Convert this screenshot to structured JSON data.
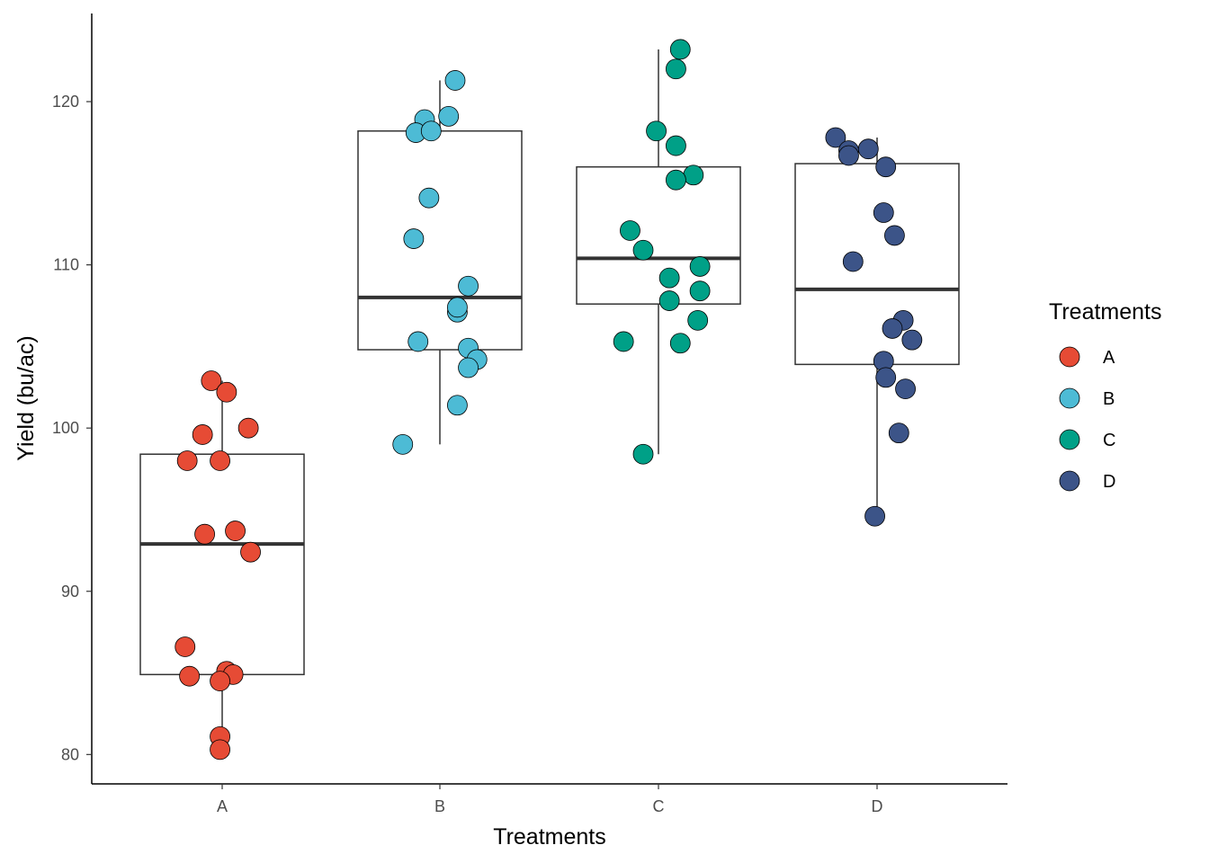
{
  "chart_data": {
    "type": "boxplot",
    "xlabel": "Treatments",
    "ylabel": "Yield (bu/ac)",
    "ylim": [
      78.2,
      125.4
    ],
    "yticks": [
      80,
      90,
      100,
      110,
      120
    ],
    "categories": [
      "A",
      "B",
      "C",
      "D"
    ],
    "grid": false,
    "legend": {
      "title": "Treatments",
      "placement": "right",
      "entries": [
        "A",
        "B",
        "C",
        "D"
      ]
    },
    "colors": {
      "A": "#E64B35",
      "B": "#4DBBD5",
      "C": "#00A087",
      "D": "#3C5488"
    },
    "boxes": [
      {
        "category": "A",
        "whisker_low": 80.3,
        "q1": 84.9,
        "median": 92.9,
        "q3": 98.4,
        "whisker_high": 102.9
      },
      {
        "category": "B",
        "whisker_low": 99.0,
        "q1": 104.8,
        "median": 108.0,
        "q3": 118.2,
        "whisker_high": 121.3
      },
      {
        "category": "C",
        "whisker_low": 98.4,
        "q1": 107.6,
        "median": 110.4,
        "q3": 116.0,
        "whisker_high": 123.2
      },
      {
        "category": "D",
        "whisker_low": 94.6,
        "q1": 103.9,
        "median": 108.5,
        "q3": 116.2,
        "whisker_high": 117.8
      }
    ],
    "points": [
      {
        "category": "A",
        "jitter": -0.05,
        "y": 102.9
      },
      {
        "category": "A",
        "jitter": 0.02,
        "y": 102.2
      },
      {
        "category": "A",
        "jitter": 0.12,
        "y": 100.0
      },
      {
        "category": "A",
        "jitter": -0.09,
        "y": 99.6
      },
      {
        "category": "A",
        "jitter": -0.16,
        "y": 98.0
      },
      {
        "category": "A",
        "jitter": -0.01,
        "y": 98.0
      },
      {
        "category": "A",
        "jitter": -0.08,
        "y": 93.5
      },
      {
        "category": "A",
        "jitter": 0.06,
        "y": 93.7
      },
      {
        "category": "A",
        "jitter": 0.13,
        "y": 92.4
      },
      {
        "category": "A",
        "jitter": -0.17,
        "y": 86.6
      },
      {
        "category": "A",
        "jitter": 0.02,
        "y": 85.1
      },
      {
        "category": "A",
        "jitter": 0.05,
        "y": 84.9
      },
      {
        "category": "A",
        "jitter": -0.15,
        "y": 84.8
      },
      {
        "category": "A",
        "jitter": -0.01,
        "y": 84.5
      },
      {
        "category": "A",
        "jitter": -0.01,
        "y": 81.1
      },
      {
        "category": "A",
        "jitter": -0.01,
        "y": 80.3
      },
      {
        "category": "B",
        "jitter": 0.07,
        "y": 121.3
      },
      {
        "category": "B",
        "jitter": 0.04,
        "y": 119.1
      },
      {
        "category": "B",
        "jitter": -0.07,
        "y": 118.9
      },
      {
        "category": "B",
        "jitter": -0.11,
        "y": 118.1
      },
      {
        "category": "B",
        "jitter": -0.04,
        "y": 118.2
      },
      {
        "category": "B",
        "jitter": -0.05,
        "y": 114.1
      },
      {
        "category": "B",
        "jitter": -0.12,
        "y": 111.6
      },
      {
        "category": "B",
        "jitter": 0.13,
        "y": 108.7
      },
      {
        "category": "B",
        "jitter": 0.08,
        "y": 107.1
      },
      {
        "category": "B",
        "jitter": 0.08,
        "y": 107.4
      },
      {
        "category": "B",
        "jitter": -0.1,
        "y": 105.3
      },
      {
        "category": "B",
        "jitter": 0.13,
        "y": 104.9
      },
      {
        "category": "B",
        "jitter": 0.17,
        "y": 104.2
      },
      {
        "category": "B",
        "jitter": 0.13,
        "y": 103.7
      },
      {
        "category": "B",
        "jitter": 0.08,
        "y": 101.4
      },
      {
        "category": "B",
        "jitter": -0.17,
        "y": 99.0
      },
      {
        "category": "C",
        "jitter": 0.1,
        "y": 123.2
      },
      {
        "category": "C",
        "jitter": 0.08,
        "y": 122.0
      },
      {
        "category": "C",
        "jitter": -0.01,
        "y": 118.2
      },
      {
        "category": "C",
        "jitter": 0.08,
        "y": 117.3
      },
      {
        "category": "C",
        "jitter": 0.16,
        "y": 115.5
      },
      {
        "category": "C",
        "jitter": 0.08,
        "y": 115.2
      },
      {
        "category": "C",
        "jitter": -0.13,
        "y": 112.1
      },
      {
        "category": "C",
        "jitter": -0.07,
        "y": 110.9
      },
      {
        "category": "C",
        "jitter": 0.19,
        "y": 109.9
      },
      {
        "category": "C",
        "jitter": 0.05,
        "y": 109.2
      },
      {
        "category": "C",
        "jitter": 0.19,
        "y": 108.4
      },
      {
        "category": "C",
        "jitter": 0.05,
        "y": 107.8
      },
      {
        "category": "C",
        "jitter": 0.18,
        "y": 106.6
      },
      {
        "category": "C",
        "jitter": -0.16,
        "y": 105.3
      },
      {
        "category": "C",
        "jitter": 0.1,
        "y": 105.2
      },
      {
        "category": "C",
        "jitter": -0.07,
        "y": 98.4
      },
      {
        "category": "D",
        "jitter": -0.19,
        "y": 117.8
      },
      {
        "category": "D",
        "jitter": -0.13,
        "y": 117.0
      },
      {
        "category": "D",
        "jitter": -0.13,
        "y": 116.7
      },
      {
        "category": "D",
        "jitter": -0.04,
        "y": 117.1
      },
      {
        "category": "D",
        "jitter": 0.04,
        "y": 116.0
      },
      {
        "category": "D",
        "jitter": 0.03,
        "y": 113.2
      },
      {
        "category": "D",
        "jitter": 0.08,
        "y": 111.8
      },
      {
        "category": "D",
        "jitter": -0.11,
        "y": 110.2
      },
      {
        "category": "D",
        "jitter": 0.12,
        "y": 106.6
      },
      {
        "category": "D",
        "jitter": 0.07,
        "y": 106.1
      },
      {
        "category": "D",
        "jitter": 0.16,
        "y": 105.4
      },
      {
        "category": "D",
        "jitter": 0.03,
        "y": 104.1
      },
      {
        "category": "D",
        "jitter": 0.04,
        "y": 103.1
      },
      {
        "category": "D",
        "jitter": 0.13,
        "y": 102.4
      },
      {
        "category": "D",
        "jitter": 0.1,
        "y": 99.7
      },
      {
        "category": "D",
        "jitter": -0.01,
        "y": 94.6
      }
    ]
  }
}
